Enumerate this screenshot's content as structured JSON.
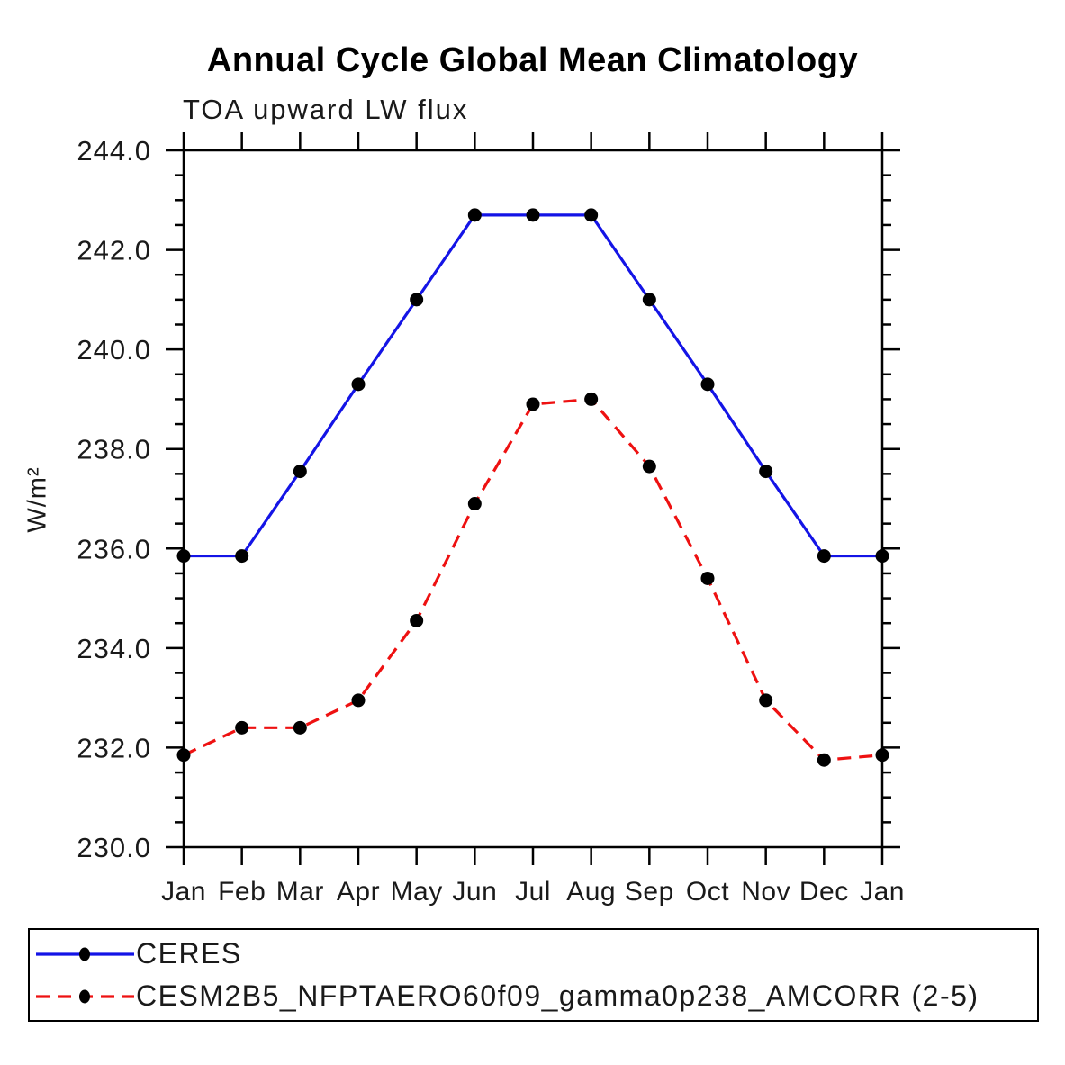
{
  "title": "Annual Cycle Global Mean Climatology",
  "subtitle": "TOA upward LW flux",
  "ylabel": "W/m²",
  "colors": {
    "ceres": "#1414e6",
    "model": "#ee1111",
    "marker": "#000000",
    "axis": "#000000"
  },
  "legend": {
    "items": [
      {
        "label": "CERES"
      },
      {
        "label": "CESM2B5_NFPTAERO60f09_gamma0p238_AMCORR (2-5)"
      }
    ]
  },
  "chart_data": {
    "type": "line",
    "categories": [
      "Jan",
      "Feb",
      "Mar",
      "Apr",
      "May",
      "Jun",
      "Jul",
      "Aug",
      "Sep",
      "Oct",
      "Nov",
      "Dec",
      "Jan"
    ],
    "series": [
      {
        "name": "CERES",
        "color": "#1414e6",
        "line_style": "solid",
        "marker": "circle",
        "values": [
          235.85,
          235.85,
          237.55,
          239.3,
          241.0,
          242.7,
          242.7,
          242.7,
          241.0,
          239.3,
          237.55,
          235.85,
          235.85
        ]
      },
      {
        "name": "CESM2B5_NFPTAERO60f09_gamma0p238_AMCORR (2-5)",
        "color": "#ee1111",
        "line_style": "dashed",
        "marker": "circle",
        "values": [
          231.85,
          232.4,
          232.4,
          232.95,
          234.55,
          236.9,
          238.9,
          239.0,
          237.65,
          235.4,
          232.95,
          231.75,
          231.85
        ]
      }
    ],
    "ylim": [
      230.0,
      244.0
    ],
    "ytick_major_step": 2.0,
    "ytick_minor_step": 0.5,
    "ytick_labels": [
      "230.0",
      "232.0",
      "234.0",
      "236.0",
      "238.0",
      "240.0",
      "242.0",
      "244.0"
    ],
    "grid": false,
    "legend_position": "bottom"
  }
}
